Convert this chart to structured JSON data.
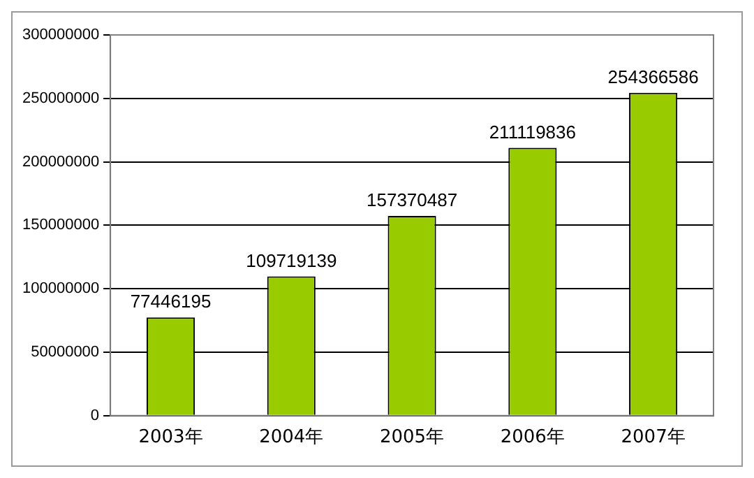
{
  "chart_data": {
    "type": "bar",
    "categories": [
      "2003年",
      "2004年",
      "2005年",
      "2006年",
      "2007年"
    ],
    "values": [
      77446195,
      109719139,
      157370487,
      211119836,
      254366586
    ],
    "color": "#99cc00",
    "ylim": [
      0,
      300000000
    ],
    "yticks": [
      0,
      50000000,
      100000000,
      150000000,
      200000000,
      250000000,
      300000000
    ],
    "grid": "y",
    "data_labels": true,
    "legend": false
  }
}
